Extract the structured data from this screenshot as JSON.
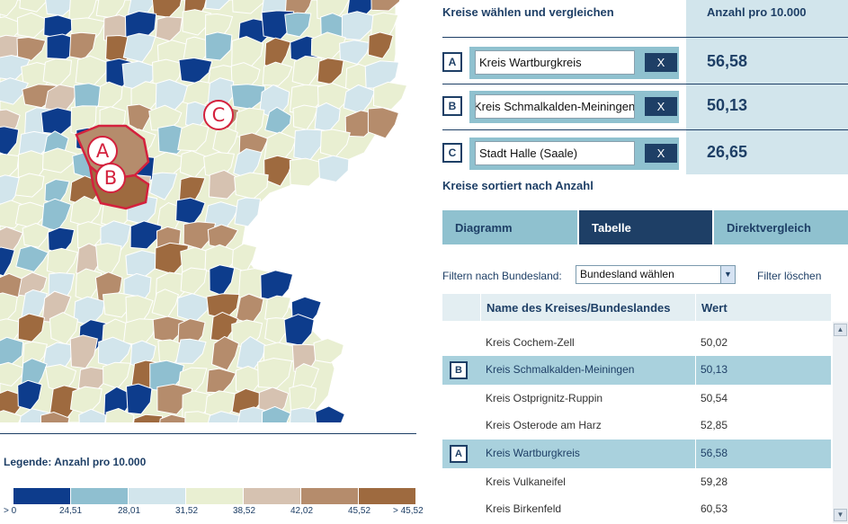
{
  "map": {
    "markers": [
      "A",
      "B",
      "C"
    ],
    "colors": {
      "background": "#e9efd2",
      "lowest": "#0d3c8c",
      "low": "#8fbfd0",
      "midlow": "#d2e5ec",
      "mid": "#e9efd2",
      "midhigh": "#d6c2b1",
      "high": "#b58c6c",
      "highest": "#9e6a3f",
      "selection": "#d4213d"
    }
  },
  "legend": {
    "title": "Legende: Anzahl pro 10.000",
    "colors": [
      "#0d3c8c",
      "#8fbfd0",
      "#d2e5ec",
      "#e9efd2",
      "#d6c2b1",
      "#b58c6c",
      "#9e6a3f"
    ],
    "labels": [
      "> 0",
      "24,51",
      "28,01",
      "31,52",
      "38,52",
      "42,02",
      "45,52",
      "> 45,52"
    ]
  },
  "selection": {
    "title": "Kreise wählen und vergleichen",
    "value_header": "Anzahl pro 10.000",
    "clear_label": "X",
    "slots": [
      {
        "letter": "A",
        "name": "Kreis Wartburgkreis",
        "value": "56,58"
      },
      {
        "letter": "B",
        "name": "Kreis Schmalkalden-Meiningen",
        "value": "50,13"
      },
      {
        "letter": "C",
        "name": "Stadt Halle (Saale)",
        "value": "26,65"
      }
    ]
  },
  "sorted_title": "Kreise sortiert nach Anzahl",
  "tabs": [
    {
      "label": "Diagramm",
      "active": false
    },
    {
      "label": "Tabelle",
      "active": true
    },
    {
      "label": "Direktvergleich",
      "active": false
    }
  ],
  "filter": {
    "label": "Filtern nach Bundesland:",
    "selected": "Bundesland wählen",
    "reset": "Filter löschen"
  },
  "table": {
    "headers": {
      "name": "Name des Kreises/Bundeslandes",
      "value": "Wert"
    },
    "rows": [
      {
        "name": "Kreis Cochem-Zell",
        "value": "50,02",
        "marker": "",
        "highlight": false
      },
      {
        "name": "Kreis Schmalkalden-Meiningen",
        "value": "50,13",
        "marker": "B",
        "highlight": true
      },
      {
        "name": "Kreis Ostprignitz-Ruppin",
        "value": "50,54",
        "marker": "",
        "highlight": false
      },
      {
        "name": "Kreis Osterode am Harz",
        "value": "52,85",
        "marker": "",
        "highlight": false
      },
      {
        "name": "Kreis Wartburgkreis",
        "value": "56,58",
        "marker": "A",
        "highlight": true
      },
      {
        "name": "Kreis Vulkaneifel",
        "value": "59,28",
        "marker": "",
        "highlight": false
      },
      {
        "name": "Kreis Birkenfeld",
        "value": "60,53",
        "marker": "",
        "highlight": false
      }
    ]
  }
}
